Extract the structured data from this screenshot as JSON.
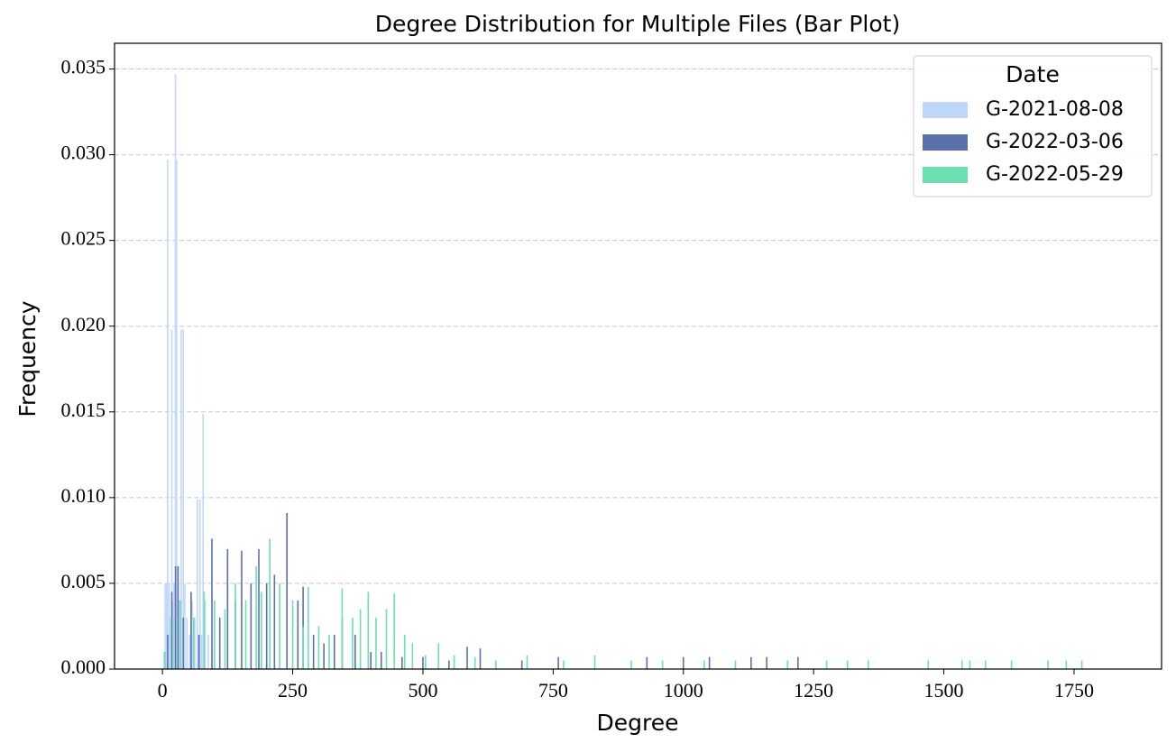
{
  "chart_data": {
    "type": "bar",
    "title": "Degree Distribution for Multiple Files (Bar Plot)",
    "x_label": "Degree",
    "y_label": "Frequency",
    "legend_title": "Date",
    "legend_position": "upper right",
    "grid": true,
    "xlim": [
      -92,
      1918
    ],
    "ylim": [
      0,
      0.0365
    ],
    "xticks": [
      0,
      250,
      500,
      750,
      1000,
      1250,
      1500,
      1750
    ],
    "yticks": [
      {
        "value": 0,
        "label": "0.000"
      },
      {
        "value": 0.005,
        "label": "0.005"
      },
      {
        "value": 0.01,
        "label": "0.010"
      },
      {
        "value": 0.015,
        "label": "0.015"
      },
      {
        "value": 0.02,
        "label": "0.020"
      },
      {
        "value": 0.025,
        "label": "0.025"
      },
      {
        "value": 0.03,
        "label": "0.030"
      },
      {
        "value": 0.035,
        "label": "0.035"
      }
    ],
    "series": [
      {
        "name": "G-2021-08-08",
        "color": "#bfd7fb",
        "x": [
          3,
          5,
          8,
          10,
          13,
          15,
          18,
          20,
          22,
          25,
          27,
          30,
          33,
          36,
          40,
          43,
          47,
          52,
          57,
          62,
          67,
          72,
          75,
          78,
          82,
          88,
          95
        ],
        "values": [
          0.001,
          0.005,
          0.005,
          0.0297,
          0.005,
          0.003,
          0.0198,
          0.004,
          0.005,
          0.0347,
          0.0297,
          0.005,
          0.004,
          0.0198,
          0.0198,
          0.005,
          0.003,
          0.002,
          0.004,
          0.003,
          0.0099,
          0.0099,
          0.002,
          0.0149,
          0.004,
          0.002,
          0.001
        ]
      },
      {
        "name": "G-2022-03-06",
        "color": "#5c70ab",
        "x": [
          10,
          18,
          25,
          30,
          40,
          55,
          70,
          95,
          110,
          125,
          140,
          152,
          170,
          185,
          200,
          215,
          239,
          260,
          270,
          290,
          310,
          330,
          345,
          370,
          400,
          420,
          460,
          500,
          550,
          585,
          610,
          690,
          760,
          930,
          1000,
          1050,
          1130,
          1160,
          1220
        ],
        "values": [
          0.002,
          0.0045,
          0.006,
          0.006,
          0.003,
          0.0045,
          0.002,
          0.0076,
          0.003,
          0.007,
          0.004,
          0.0069,
          0.005,
          0.007,
          0.005,
          0.0055,
          0.0091,
          0.004,
          0.0048,
          0.002,
          0.0015,
          0.002,
          0.003,
          0.002,
          0.001,
          0.001,
          0.0007,
          0.0007,
          0.0005,
          0.0013,
          0.0012,
          0.0005,
          0.0007,
          0.0007,
          0.0007,
          0.0007,
          0.0007,
          0.0007,
          0.0007
        ]
      },
      {
        "name": "G-2022-05-29",
        "color": "#6ddfb2",
        "x": [
          5,
          20,
          35,
          60,
          80,
          100,
          120,
          140,
          160,
          180,
          190,
          206,
          225,
          250,
          270,
          280,
          300,
          320,
          345,
          365,
          380,
          395,
          410,
          430,
          445,
          465,
          480,
          505,
          530,
          560,
          600,
          640,
          700,
          770,
          830,
          900,
          960,
          1040,
          1100,
          1200,
          1275,
          1315,
          1355,
          1470,
          1535,
          1550,
          1580,
          1630,
          1700,
          1735,
          1765
        ],
        "values": [
          0.001,
          0.003,
          0.004,
          0.003,
          0.0045,
          0.004,
          0.0035,
          0.005,
          0.004,
          0.006,
          0.0045,
          0.0076,
          0.005,
          0.004,
          0.0025,
          0.0048,
          0.0025,
          0.002,
          0.0047,
          0.003,
          0.0035,
          0.0045,
          0.003,
          0.0035,
          0.0044,
          0.002,
          0.0015,
          0.0008,
          0.0015,
          0.0008,
          0.0007,
          0.0005,
          0.0008,
          0.0005,
          0.0008,
          0.0005,
          0.0005,
          0.0005,
          0.0005,
          0.0005,
          0.0005,
          0.0005,
          0.0005,
          0.0005,
          0.0005,
          0.0005,
          0.0005,
          0.0005,
          0.0005,
          0.0005,
          0.0005
        ]
      }
    ]
  }
}
